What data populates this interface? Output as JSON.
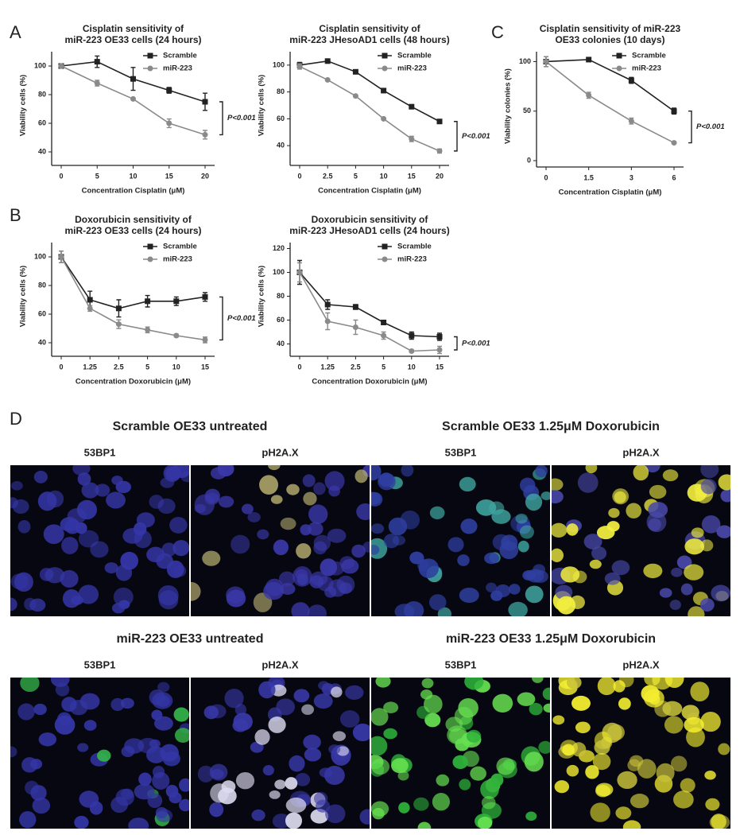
{
  "panel_labels": [
    "A",
    "B",
    "C",
    "D"
  ],
  "chart_data": [
    {
      "type": "line",
      "title": [
        "Cisplatin sensitivity of",
        "miR-223 OE33 cells (24 hours)"
      ],
      "x_label": "Concentration Cisplatin (μM)",
      "y_label": "Viability cells (%)",
      "categories": [
        "0",
        "5",
        "10",
        "15",
        "20"
      ],
      "series": [
        {
          "name": "Scramble",
          "color": "#222222",
          "marker": "square",
          "values": [
            100,
            103,
            91,
            83,
            75
          ],
          "errors": [
            0,
            4,
            8,
            2,
            6
          ]
        },
        {
          "name": "miR-223",
          "color": "#8a8a8a",
          "marker": "circle",
          "values": [
            100,
            88,
            77,
            60,
            52
          ],
          "errors": [
            0,
            2,
            0.5,
            3,
            3
          ]
        }
      ],
      "ylim": [
        35,
        110
      ],
      "yticks": [
        40,
        60,
        80,
        100
      ],
      "legend": "upper right",
      "annotation": "P<0.001"
    },
    {
      "type": "line",
      "title": [
        "Cisplatin sensitivity of",
        "miR-223 JHesoAD1 cells (48 hours)"
      ],
      "x_label": "Concentration Cisplatin (μM)",
      "y_label": "Viability cells (%)",
      "categories": [
        "0",
        "2.5",
        "5",
        "10",
        "15",
        "20"
      ],
      "series": [
        {
          "name": "Scramble",
          "color": "#222222",
          "marker": "square",
          "values": [
            100,
            103,
            95,
            81,
            69,
            58
          ],
          "errors": [
            2,
            0.5,
            0.5,
            0.5,
            0.5,
            0.5
          ]
        },
        {
          "name": "miR-223",
          "color": "#8a8a8a",
          "marker": "circle",
          "values": [
            99,
            89,
            77,
            60,
            45,
            36
          ],
          "errors": [
            2,
            0.5,
            0.5,
            0.5,
            2,
            1.5
          ]
        }
      ],
      "ylim": [
        30,
        110
      ],
      "yticks": [
        40,
        60,
        80,
        100
      ],
      "legend": "upper right",
      "annotation": "P<0.001"
    },
    {
      "type": "line",
      "title": [
        "Cisplatin sensitivity of miR-223",
        "OE33 colonies (10 days)"
      ],
      "x_label": "Concentration Cisplatin (μM)",
      "y_label": "Viability colonies (%)",
      "categories": [
        "0",
        "1.5",
        "3",
        "6"
      ],
      "series": [
        {
          "name": "Scramble",
          "color": "#222222",
          "marker": "square",
          "values": [
            100,
            102,
            81,
            50
          ],
          "errors": [
            5,
            1,
            3,
            3
          ]
        },
        {
          "name": "miR-223",
          "color": "#8a8a8a",
          "marker": "circle",
          "values": [
            100,
            66,
            40,
            18
          ],
          "errors": [
            5,
            3,
            3,
            1
          ]
        }
      ],
      "ylim": [
        0,
        110
      ],
      "yticks": [
        0,
        50,
        100
      ],
      "legend": "upper right",
      "annotation": "P<0.001"
    },
    {
      "type": "line",
      "title": [
        "Doxorubicin sensitivity of",
        "miR-223 OE33 cells (24 hours)"
      ],
      "x_label": "Concentration Doxorubicin (μM)",
      "y_label": "Viability cells (%)",
      "categories": [
        "0",
        "1.25",
        "2.5",
        "5",
        "10",
        "15"
      ],
      "series": [
        {
          "name": "Scramble",
          "color": "#222222",
          "marker": "square",
          "values": [
            100,
            70,
            64,
            69,
            69,
            72
          ],
          "errors": [
            4,
            6,
            6,
            4,
            3,
            3
          ]
        },
        {
          "name": "miR-223",
          "color": "#8a8a8a",
          "marker": "circle",
          "values": [
            100,
            64,
            53,
            49,
            45,
            42
          ],
          "errors": [
            4,
            2,
            3,
            2,
            1,
            2
          ]
        }
      ],
      "ylim": [
        35,
        110
      ],
      "yticks": [
        40,
        60,
        80,
        100
      ],
      "legend": "upper right",
      "annotation": "P<0.001"
    },
    {
      "type": "line",
      "title": [
        "Doxorubicin sensitivity of",
        "miR-223 JHesoAD1 cells (24 hours)"
      ],
      "x_label": "Concentration Doxorubicin (μM)",
      "y_label": "Viability cells (%)",
      "categories": [
        "0",
        "1.25",
        "2.5",
        "5",
        "10",
        "15"
      ],
      "series": [
        {
          "name": "Scramble",
          "color": "#222222",
          "marker": "square",
          "values": [
            100,
            73,
            71,
            58,
            47,
            46
          ],
          "errors": [
            10,
            4,
            2,
            1,
            3,
            3
          ]
        },
        {
          "name": "miR-223",
          "color": "#8a8a8a",
          "marker": "circle",
          "values": [
            100,
            59,
            54,
            47,
            34,
            35
          ],
          "errors": [
            8,
            7,
            6,
            3,
            1,
            3
          ]
        }
      ],
      "ylim": [
        35,
        125
      ],
      "yticks": [
        40,
        60,
        80,
        100,
        120
      ],
      "legend": "upper right",
      "annotation": "P<0.001"
    }
  ],
  "imaging": {
    "groups": [
      {
        "title": "Scramble OE33 untreated",
        "channels": [
          "53BP1",
          "pH2A.X"
        ]
      },
      {
        "title": "Scramble OE33 1.25μM Doxorubicin",
        "channels": [
          "53BP1",
          "pH2A.X"
        ]
      },
      {
        "title": "miR-223 OE33 untreated",
        "channels": [
          "53BP1",
          "pH2A.X"
        ]
      },
      {
        "title": "miR-223 OE33 1.25μM Doxorubicin",
        "channels": [
          "53BP1",
          "pH2A.X"
        ]
      }
    ]
  }
}
